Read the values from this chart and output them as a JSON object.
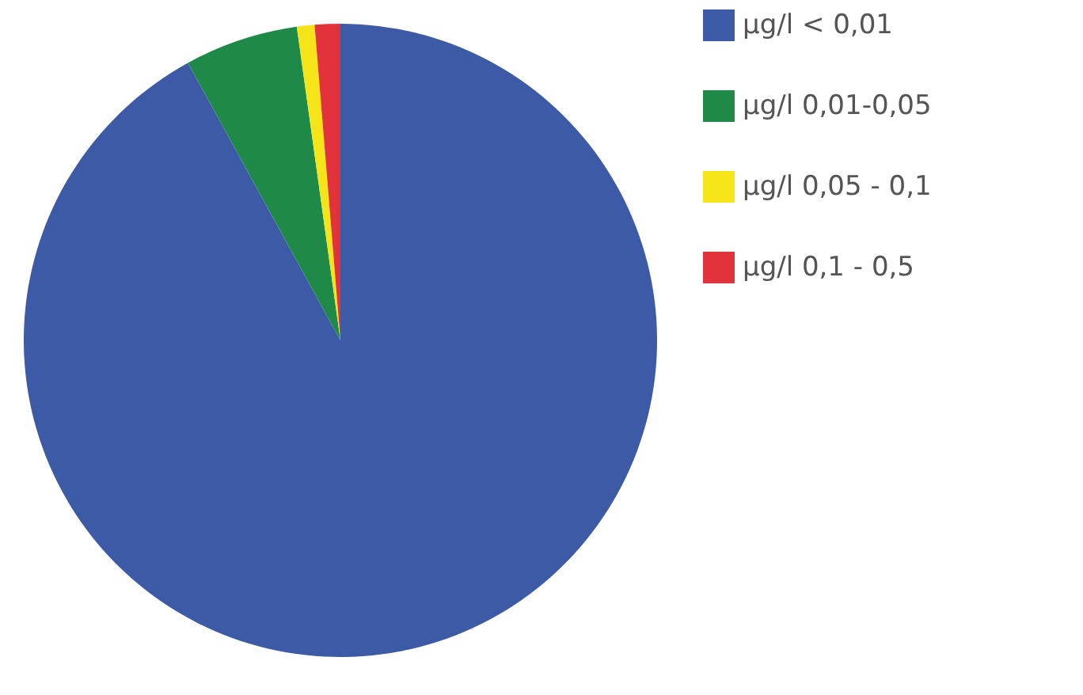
{
  "chart_data": {
    "type": "pie",
    "categories": [
      "µg/l < 0,01",
      "µg/l  0,01-0,05",
      "µg/l  0,05 - 0,1",
      "µg/l  0,1 - 0,5"
    ],
    "values": [
      92,
      5.8,
      0.9,
      1.3
    ],
    "colors": [
      "#3d5aa6",
      "#1f8a48",
      "#f4e418",
      "#e2323c"
    ],
    "legend": "right"
  }
}
